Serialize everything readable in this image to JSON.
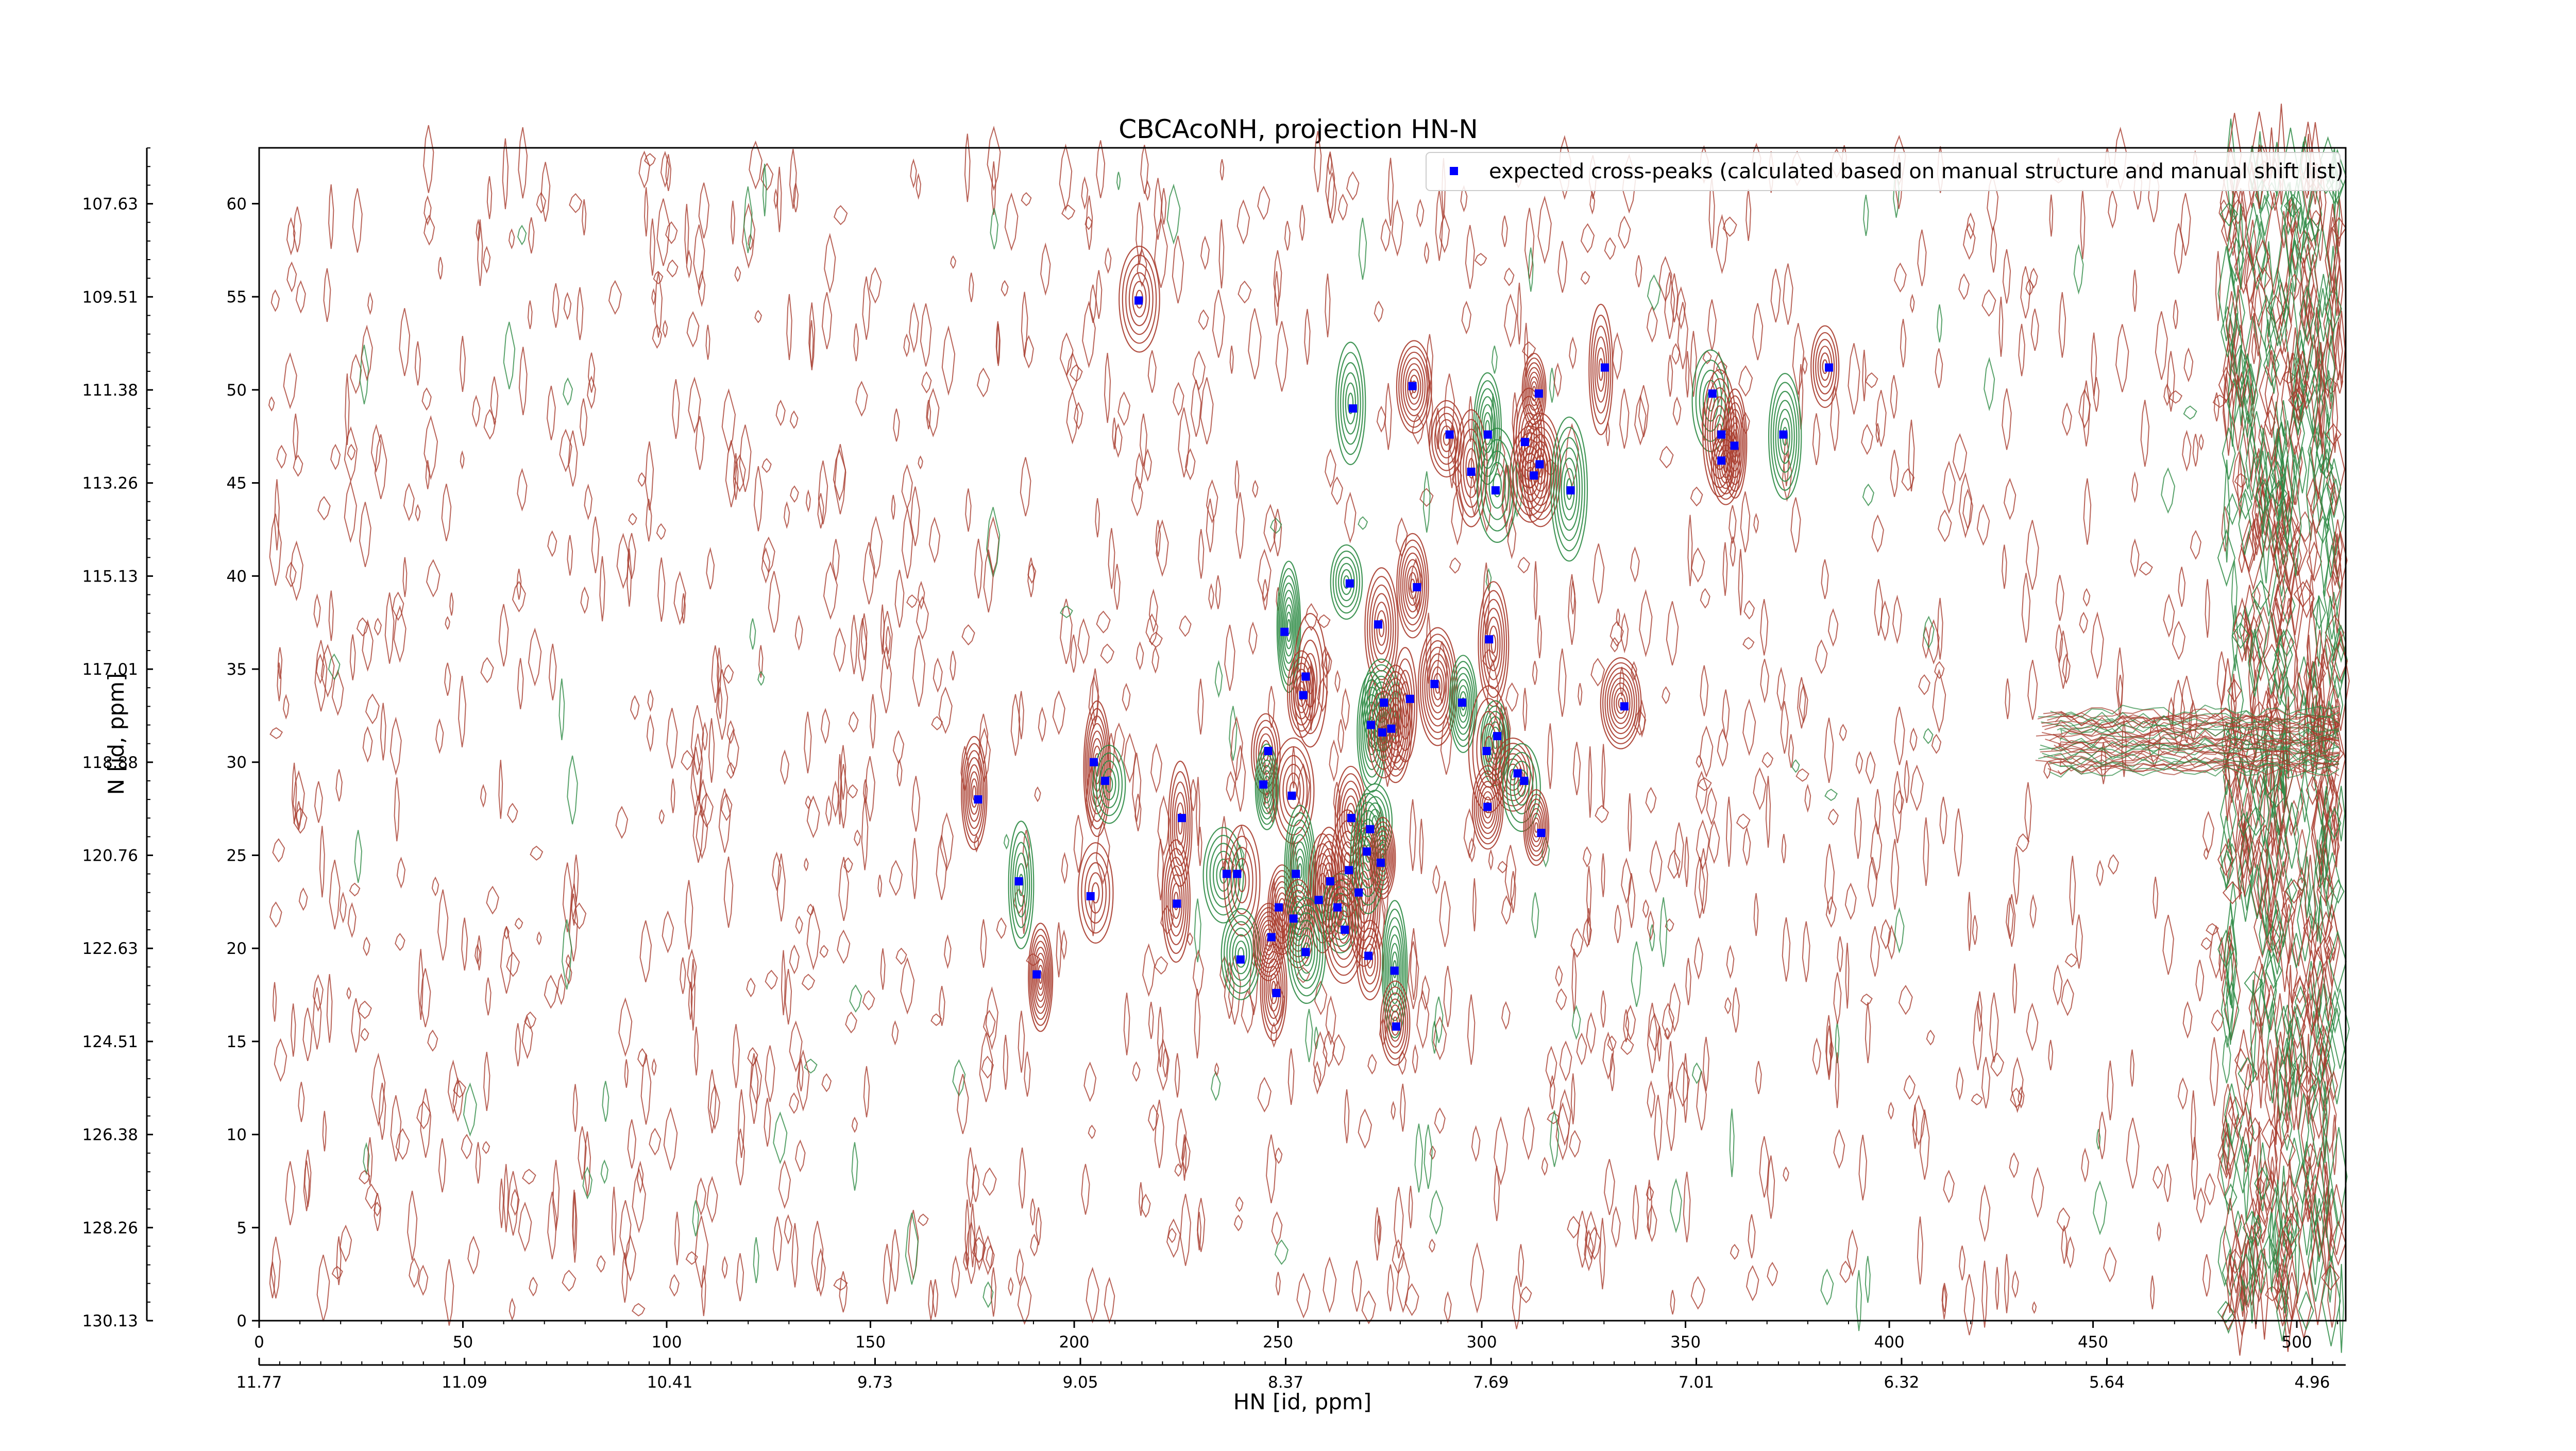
{
  "chart_data": {
    "type": "scatter",
    "title": "CBCAcoNH, projection HN-N",
    "xlabel": "HN [id, ppm]",
    "ylabel": "N [id, ppm]",
    "xlim": [
      0,
      512
    ],
    "ylim": [
      0,
      63
    ],
    "x_ticks": [
      0,
      50,
      100,
      150,
      200,
      250,
      300,
      350,
      400,
      450,
      500
    ],
    "y_ticks": [
      0,
      5,
      10,
      15,
      20,
      25,
      30,
      35,
      40,
      45,
      50,
      55,
      60
    ],
    "secondary_x_tick_labels": [
      "11.77",
      "11.09",
      "10.41",
      "9.73",
      "9.05",
      "8.37",
      "7.69",
      "7.01",
      "6.32",
      "5.64",
      "4.96"
    ],
    "secondary_y_tick_labels": [
      "130.13",
      "128.26",
      "126.38",
      "124.51",
      "122.63",
      "120.76",
      "118.88",
      "117.01",
      "115.13",
      "113.26",
      "111.38",
      "109.51",
      "107.63"
    ],
    "legend": {
      "position": "top-right",
      "entries": [
        "expected cross-peaks (calculated based on manual structure and manual shift list)"
      ]
    },
    "grid": false,
    "colors": {
      "contour_positive": "#a83c2e",
      "contour_negative": "#2e8b45",
      "peak": "#0000ff"
    },
    "series": [
      {
        "name": "expected cross-peaks (calculated based on manual structure and manual shift list)",
        "points": [
          [
            215.8,
            54.8
          ],
          [
            268.4,
            49.0
          ],
          [
            283.0,
            50.2
          ],
          [
            292.1,
            47.6
          ],
          [
            301.5,
            47.6
          ],
          [
            314.0,
            49.8
          ],
          [
            330.2,
            51.2
          ],
          [
            356.6,
            49.8
          ],
          [
            358.8,
            47.6
          ],
          [
            362.0,
            47.0
          ],
          [
            374.0,
            47.6
          ],
          [
            385.2,
            51.2
          ],
          [
            297.4,
            45.6
          ],
          [
            303.4,
            44.6
          ],
          [
            312.8,
            45.4
          ],
          [
            314.2,
            46.0
          ],
          [
            321.8,
            44.6
          ],
          [
            358.8,
            46.2
          ],
          [
            310.6,
            47.2
          ],
          [
            267.6,
            39.6
          ],
          [
            274.6,
            37.4
          ],
          [
            284.1,
            39.4
          ],
          [
            251.6,
            37.0
          ],
          [
            256.8,
            34.6
          ],
          [
            256.2,
            33.6
          ],
          [
            276.0,
            33.2
          ],
          [
            282.4,
            33.4
          ],
          [
            288.4,
            34.2
          ],
          [
            295.2,
            33.2
          ],
          [
            301.8,
            36.6
          ],
          [
            335.0,
            33.0
          ],
          [
            272.8,
            32.0
          ],
          [
            275.6,
            31.6
          ],
          [
            277.8,
            31.8
          ],
          [
            303.8,
            31.4
          ],
          [
            301.2,
            30.6
          ],
          [
            308.8,
            29.4
          ],
          [
            310.4,
            29.0
          ],
          [
            176.4,
            28.0
          ],
          [
            204.8,
            30.0
          ],
          [
            207.6,
            29.0
          ],
          [
            226.4,
            27.0
          ],
          [
            247.6,
            30.6
          ],
          [
            246.4,
            28.8
          ],
          [
            253.4,
            28.2
          ],
          [
            268.0,
            27.0
          ],
          [
            272.6,
            26.4
          ],
          [
            301.4,
            27.6
          ],
          [
            314.6,
            26.2
          ],
          [
            186.4,
            23.6
          ],
          [
            204.0,
            22.8
          ],
          [
            225.2,
            22.4
          ],
          [
            237.4,
            24.0
          ],
          [
            240.0,
            24.0
          ],
          [
            250.2,
            22.2
          ],
          [
            254.4,
            24.0
          ],
          [
            260.0,
            22.6
          ],
          [
            262.8,
            23.6
          ],
          [
            264.6,
            22.2
          ],
          [
            267.4,
            24.2
          ],
          [
            269.8,
            23.0
          ],
          [
            271.8,
            25.2
          ],
          [
            275.2,
            24.6
          ],
          [
            190.8,
            18.6
          ],
          [
            240.8,
            19.4
          ],
          [
            248.4,
            20.6
          ],
          [
            253.8,
            21.6
          ],
          [
            256.8,
            19.8
          ],
          [
            266.4,
            21.0
          ],
          [
            272.2,
            19.6
          ],
          [
            278.6,
            18.8
          ],
          [
            249.6,
            17.6
          ],
          [
            279.0,
            15.8
          ]
        ]
      }
    ]
  }
}
